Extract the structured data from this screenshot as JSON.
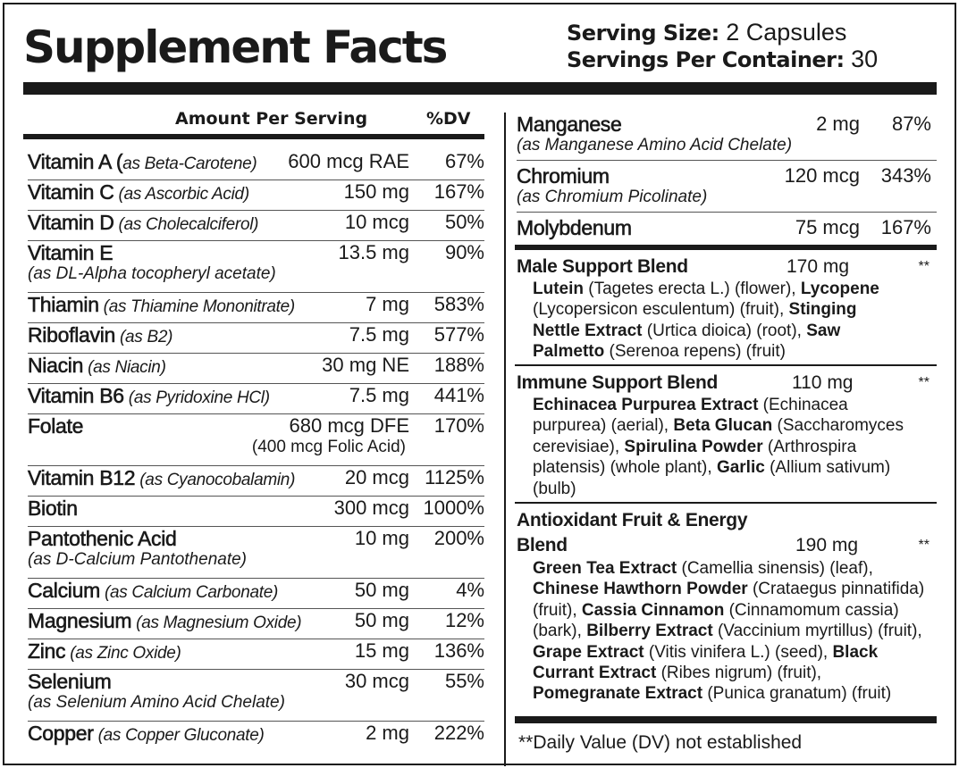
{
  "label": {
    "title": "Supplement Facts",
    "serving_size_label": "Serving Size:",
    "serving_size_value": "2 Capsules",
    "servings_per_container_label": "Servings Per Container:",
    "servings_per_container_value": "30",
    "column_amount": "Amount Per Serving",
    "column_dv": "%DV",
    "footnote": "**Daily Value (DV) not established"
  },
  "left_nutrients": [
    {
      "name": "Vitamin A (",
      "source": "as Beta-Carotene)",
      "sub": "",
      "amount": "600 mcg RAE",
      "amount2": "",
      "dv": "67%"
    },
    {
      "name": "Vitamin C",
      "source": " (as Ascorbic Acid)",
      "sub": "",
      "amount": "150 mg",
      "amount2": "",
      "dv": "167%"
    },
    {
      "name": "Vitamin D",
      "source": " (as Cholecalciferol)",
      "sub": "",
      "amount": "10 mcg",
      "amount2": "",
      "dv": "50%"
    },
    {
      "name": "Vitamin E",
      "source": "",
      "sub": "(as DL-Alpha tocopheryl acetate)",
      "amount": "13.5 mg",
      "amount2": "",
      "dv": "90%"
    },
    {
      "name": "Thiamin",
      "source": " (as Thiamine Mononitrate)",
      "sub": "",
      "amount": "7  mg",
      "amount2": "",
      "dv": "583%"
    },
    {
      "name": "Riboflavin",
      "source": " (as B2)",
      "sub": "",
      "amount": "7.5 mg",
      "amount2": "",
      "dv": "577%"
    },
    {
      "name": "Niacin",
      "source": " (as Niacin)",
      "sub": "",
      "amount": "30 mg NE",
      "amount2": "",
      "dv": "188%"
    },
    {
      "name": "Vitamin B6",
      "source": " (as Pyridoxine HCl)",
      "sub": "",
      "amount": "7.5 mg",
      "amount2": "",
      "dv": "441%"
    },
    {
      "name": "Folate",
      "source": "",
      "sub": "",
      "amount": "680 mcg DFE",
      "amount2": "(400 mcg Folic Acid)",
      "dv": "170%"
    },
    {
      "name": "Vitamin B12",
      "source": " (as Cyanocobalamin)",
      "sub": "",
      "amount": "20 mcg",
      "amount2": "",
      "dv": "1125%"
    },
    {
      "name": "Biotin",
      "source": "",
      "sub": "",
      "amount": "300 mcg",
      "amount2": "",
      "dv": "1000%"
    },
    {
      "name": "Pantothenic Acid",
      "source": "",
      "sub": "(as D-Calcium Pantothenate)",
      "amount": "10 mg",
      "amount2": "",
      "dv": "200%"
    },
    {
      "name": "Calcium",
      "source": " (as Calcium Carbonate)",
      "sub": "",
      "amount": "50 mg",
      "amount2": "",
      "dv": "4%"
    },
    {
      "name": "Magnesium",
      "source": " (as Magnesium Oxide)",
      "sub": "",
      "amount": "50 mg",
      "amount2": "",
      "dv": "12%"
    },
    {
      "name": "Zinc",
      "source": " (as Zinc Oxide)",
      "sub": "",
      "amount": "15 mg",
      "amount2": "",
      "dv": "136%"
    },
    {
      "name": "Selenium",
      "source": "",
      "sub": "(as Selenium Amino Acid Chelate)",
      "amount": "30 mcg",
      "amount2": "",
      "dv": "55%"
    },
    {
      "name": "Copper",
      "source": " (as Copper Gluconate)",
      "sub": "",
      "amount": "2 mg",
      "amount2": "",
      "dv": "222%"
    }
  ],
  "right_nutrients": [
    {
      "name": "Manganese",
      "sub": "(as Manganese Amino Acid Chelate)",
      "amount": "2 mg",
      "dv": "87%"
    },
    {
      "name": "Chromium",
      "sub": "(as Chromium Picolinate)",
      "amount": "120 mcg",
      "dv": "343%"
    },
    {
      "name": "Molybdenum",
      "sub": "",
      "amount": "75 mcg",
      "dv": "167%"
    }
  ],
  "blends": [
    {
      "name": "Male Support Blend",
      "name2": "",
      "amount": "170 mg",
      "dv": "**",
      "lines": [
        [
          {
            "b": "Lutein"
          },
          {
            "t": " (Tagetes erecta L.) (flower), "
          },
          {
            "b": "Lycopene"
          }
        ],
        [
          {
            "t": "(Lycopersicon esculentum) (fruit), "
          },
          {
            "b": "Stinging"
          }
        ],
        [
          {
            "b": "Nettle Extract"
          },
          {
            "t": "  (Urtica dioica) (root), "
          },
          {
            "b": "Saw"
          }
        ],
        [
          {
            "b": "Palmetto"
          },
          {
            "t": " (Serenoa repens) (fruit)"
          }
        ]
      ]
    },
    {
      "name": "Immune Support Blend",
      "name2": "",
      "amount": "110 mg",
      "dv": "**",
      "lines": [
        [
          {
            "b": "Echinacea Purpurea Extract"
          },
          {
            "t": " (Echinacea"
          }
        ],
        [
          {
            "t": "purpurea) (aerial), "
          },
          {
            "b": "Beta Glucan"
          },
          {
            "t": " (Saccharomyces"
          }
        ],
        [
          {
            "t": "cerevisiae), "
          },
          {
            "b": "Spirulina Powder"
          },
          {
            "t": " (Arthrospira"
          }
        ],
        [
          {
            "t": "platensis) (whole plant), "
          },
          {
            "b": "Garlic"
          },
          {
            "t": " (Allium sativum)"
          }
        ],
        [
          {
            "t": "(bulb)"
          }
        ]
      ]
    },
    {
      "name": "Antioxidant Fruit & Energy",
      "name2": "Blend",
      "amount": "190 mg",
      "dv": "**",
      "lines": [
        [
          {
            "b": "Green Tea Extract"
          },
          {
            "t": " (Camellia sinensis) (leaf),"
          }
        ],
        [
          {
            "b": "Chinese Hawthorn Powder"
          },
          {
            "t": " (Crataegus pinnatifida)"
          }
        ],
        [
          {
            "t": "(fruit), "
          },
          {
            "b": "Cassia Cinnamon"
          },
          {
            "t": " (Cinnamomum cassia)"
          }
        ],
        [
          {
            "t": "(bark), "
          },
          {
            "b": "Bilberry Extract"
          },
          {
            "t": " (Vaccinium myrtillus) (fruit),"
          }
        ],
        [
          {
            "b": "Grape Extract"
          },
          {
            "t": " (Vitis vinifera L.) (seed), "
          },
          {
            "b": "Black"
          }
        ],
        [
          {
            "b": "Currant Extract"
          },
          {
            "t": " (Ribes nigrum) (fruit),"
          }
        ],
        [
          {
            "b": "Pomegranate Extract"
          },
          {
            "t": " (Punica granatum) (fruit)"
          }
        ]
      ]
    }
  ]
}
